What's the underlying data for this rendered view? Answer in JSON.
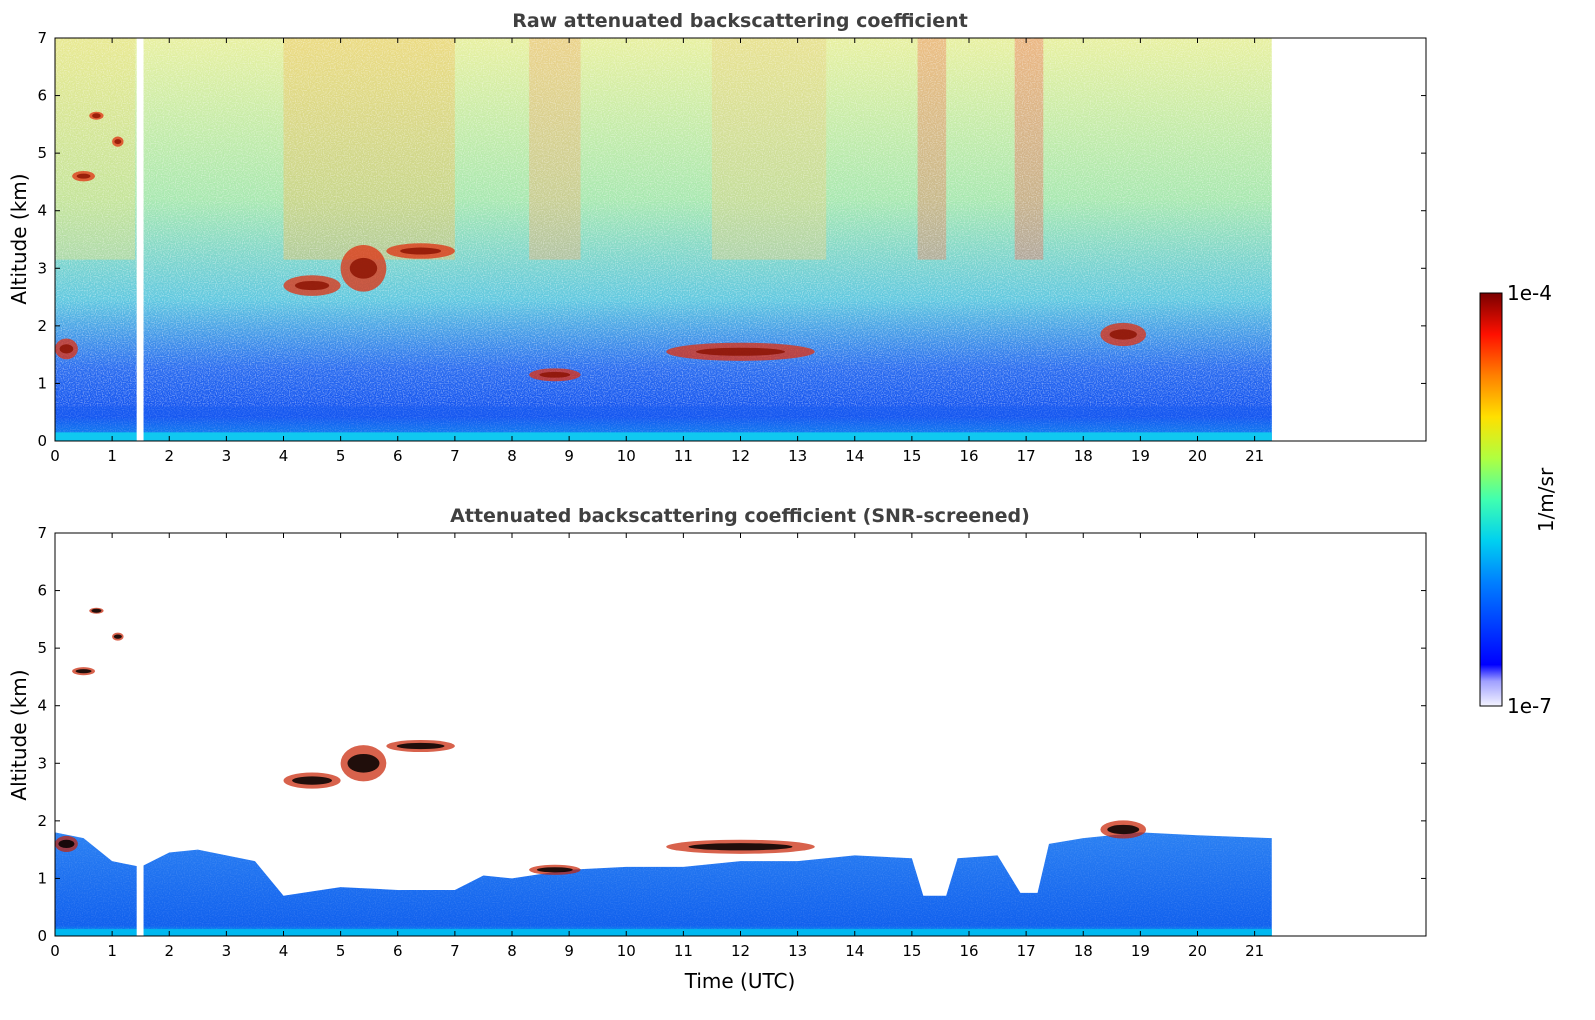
{
  "chart_data": [
    {
      "type": "heatmap",
      "title": "Raw attenuated backscattering coefficient",
      "xlabel": "",
      "ylabel": "Altitude (km)",
      "xlim": [
        0,
        24
      ],
      "ylim": [
        0,
        7
      ],
      "x_ticks": [
        0,
        1,
        2,
        3,
        4,
        5,
        6,
        7,
        8,
        9,
        10,
        11,
        12,
        13,
        14,
        15,
        16,
        17,
        18,
        19,
        20,
        21
      ],
      "y_ticks": [
        0,
        1,
        2,
        3,
        4,
        5,
        6,
        7
      ],
      "data_extent_x": [
        0,
        21.3
      ],
      "gaps": [
        [
          1.43,
          1.55
        ]
      ],
      "grid": false,
      "clouds": [
        {
          "t": [
            0.0,
            0.4
          ],
          "z": [
            1.2,
            2.0
          ]
        },
        {
          "t": [
            0.3,
            0.7
          ],
          "z": [
            4.4,
            4.8
          ]
        },
        {
          "t": [
            0.6,
            0.85
          ],
          "z": [
            5.5,
            5.8
          ]
        },
        {
          "t": [
            1.0,
            1.2
          ],
          "z": [
            5.0,
            5.4
          ]
        },
        {
          "t": [
            4.0,
            5.0
          ],
          "z": [
            2.3,
            3.1
          ]
        },
        {
          "t": [
            5.0,
            5.8
          ],
          "z": [
            2.1,
            3.9
          ]
        },
        {
          "t": [
            5.8,
            7.0
          ],
          "z": [
            3.0,
            3.6
          ]
        },
        {
          "t": [
            8.3,
            9.2
          ],
          "z": [
            0.9,
            1.4
          ]
        },
        {
          "t": [
            10.7,
            13.3
          ],
          "z": [
            1.2,
            1.9
          ]
        },
        {
          "t": [
            18.3,
            19.1
          ],
          "z": [
            1.4,
            2.3
          ]
        }
      ]
    },
    {
      "type": "heatmap",
      "title": "Attenuated backscattering coefficient (SNR-screened)",
      "xlabel": "Time (UTC)",
      "ylabel": "Altitude (km)",
      "xlim": [
        0,
        24
      ],
      "ylim": [
        0,
        7
      ],
      "x_ticks": [
        0,
        1,
        2,
        3,
        4,
        5,
        6,
        7,
        8,
        9,
        10,
        11,
        12,
        13,
        14,
        15,
        16,
        17,
        18,
        19,
        20,
        21
      ],
      "y_ticks": [
        0,
        1,
        2,
        3,
        4,
        5,
        6,
        7
      ],
      "data_extent_x": [
        0,
        21.3
      ],
      "grid": false,
      "boundary_layer_top_km": [
        [
          0,
          1.8
        ],
        [
          0.5,
          1.7
        ],
        [
          1.0,
          1.3
        ],
        [
          1.5,
          1.2
        ],
        [
          2.0,
          1.45
        ],
        [
          2.5,
          1.5
        ],
        [
          3.0,
          1.4
        ],
        [
          3.5,
          1.3
        ],
        [
          4.0,
          0.7
        ],
        [
          5.0,
          0.85
        ],
        [
          6.0,
          0.8
        ],
        [
          7.0,
          0.8
        ],
        [
          7.5,
          1.05
        ],
        [
          8.0,
          1.0
        ],
        [
          9.0,
          1.15
        ],
        [
          10.0,
          1.2
        ],
        [
          11.0,
          1.2
        ],
        [
          12.0,
          1.3
        ],
        [
          13.0,
          1.3
        ],
        [
          14.0,
          1.4
        ],
        [
          15.0,
          1.35
        ],
        [
          15.2,
          0.7
        ],
        [
          15.6,
          0.7
        ],
        [
          15.8,
          1.35
        ],
        [
          16.5,
          1.4
        ],
        [
          16.9,
          0.75
        ],
        [
          17.2,
          0.75
        ],
        [
          17.4,
          1.6
        ],
        [
          18.0,
          1.7
        ],
        [
          19.0,
          1.8
        ],
        [
          20.0,
          1.75
        ],
        [
          21.3,
          1.7
        ]
      ]
    }
  ],
  "colorbar": {
    "max_label": "1e-4",
    "min_label": "1e-7",
    "label": "1/m/sr",
    "colormap": "jet"
  }
}
